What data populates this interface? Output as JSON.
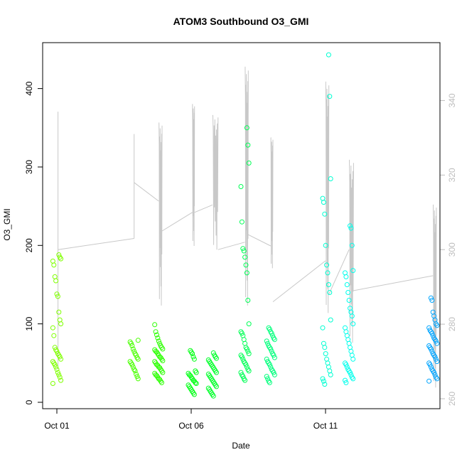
{
  "chart_data": {
    "type": "scatter",
    "title": "ATOM3 Southbound O3_GMI",
    "xlabel": "Date",
    "ylabel": "O3_GMI",
    "xlim": [
      "2016-10-01T00:00",
      "2016-10-16T00:00"
    ],
    "ylim": [
      0,
      450
    ],
    "y2lim": [
      260,
      350
    ],
    "x_ticks": [
      {
        "label": "Oct 01",
        "value": "2016-10-01T00:00"
      },
      {
        "label": "Oct 06",
        "value": "2016-10-06T00:00"
      },
      {
        "label": "Oct 11",
        "value": "2016-10-11T00:00"
      }
    ],
    "y_ticks": [
      0,
      100,
      200,
      300,
      400
    ],
    "y2_ticks": [
      260,
      280,
      300,
      320,
      340
    ],
    "grid": false,
    "series": [
      {
        "kind": "points",
        "axis": "left",
        "marker": "open-circle",
        "clusters": [
          {
            "x": "2016-10-01T00:00",
            "color": "#7FFF00",
            "values": [
              24,
              28,
              32,
              35,
              38,
              42,
              45,
              48,
              50,
              52,
              55,
              58,
              60,
              62,
              65,
              67,
              70,
              85,
              95,
              100,
              105,
              115,
              135,
              138,
              155,
              160,
              175,
              180,
              183,
              185,
              188
            ]
          },
          {
            "x": "2016-10-03T21:00",
            "color": "#49FF00",
            "values": [
              30,
              33,
              36,
              40,
              42,
              45,
              48,
              50,
              52,
              55,
              57,
              60,
              62,
              65,
              68,
              72,
              75,
              77,
              79
            ]
          },
          {
            "x": "2016-10-04T19:00",
            "color": "#2BFF00",
            "values": [
              25,
              27,
              29,
              30,
              32,
              34,
              35,
              37,
              38,
              40,
              42,
              44,
              45,
              47,
              48,
              50,
              52,
              53,
              55,
              57,
              58,
              60,
              62,
              64,
              65,
              67,
              68,
              70,
              72,
              75,
              78,
              82,
              86,
              90,
              99
            ]
          },
          {
            "x": "2016-10-06T01:00",
            "color": "#00FF14",
            "values": [
              10,
              12,
              14,
              16,
              18,
              20,
              22,
              24,
              25,
              27,
              28,
              30,
              32,
              34,
              35,
              37,
              38,
              40,
              55,
              58,
              62,
              64,
              66
            ]
          },
          {
            "x": "2016-10-06T19:00",
            "color": "#00FF2A",
            "values": [
              8,
              10,
              12,
              14,
              16,
              18,
              20,
              22,
              24,
              26,
              28,
              30,
              32,
              34,
              36,
              38,
              40,
              42,
              44,
              46,
              48,
              50,
              52,
              54,
              56,
              58,
              60,
              63
            ]
          },
          {
            "x": "2016-10-08T00:00",
            "color": "#00FF55",
            "values": [
              28,
              30,
              33,
              35,
              38,
              40,
              42,
              45,
              48,
              50,
              52,
              55,
              58,
              60,
              62,
              65,
              68,
              70,
              75,
              80,
              85,
              88,
              90,
              100,
              130,
              165,
              175,
              185,
              193,
              196,
              230,
              275,
              305,
              328,
              350
            ]
          },
          {
            "x": "2016-10-08T23:00",
            "color": "#00FF7C",
            "values": [
              25,
              27,
              30,
              33,
              35,
              38,
              40,
              42,
              45,
              48,
              50,
              52,
              55,
              57,
              60,
              62,
              65,
              68,
              70,
              72,
              75,
              78,
              80,
              82,
              85,
              88,
              90,
              93,
              95
            ]
          },
          {
            "x": "2016-10-11T01:00",
            "color": "#00FFD2",
            "values": [
              23,
              27,
              30,
              35,
              40,
              45,
              50,
              55,
              62,
              70,
              75,
              95,
              105,
              140,
              150,
              165,
              175,
              200,
              240,
              255,
              260,
              285,
              390,
              443
            ]
          },
          {
            "x": "2016-10-11T21:00",
            "color": "#00FFEC",
            "values": [
              25,
              28,
              30,
              32,
              35,
              38,
              40,
              42,
              45,
              48,
              50,
              55,
              60,
              65,
              70,
              75,
              80,
              85,
              90,
              95,
              100,
              110,
              115,
              120,
              130,
              140,
              150,
              160,
              165,
              168,
              200,
              222,
              225
            ]
          },
          {
            "x": "2016-10-15T00:00",
            "color": "#00A5FF",
            "values": [
              27,
              30,
              32,
              35,
              38,
              40,
              42,
              45,
              48,
              50,
              52,
              55,
              58,
              60,
              62,
              65,
              68,
              70,
              72,
              75,
              78,
              80,
              82,
              85,
              88,
              90,
              92,
              95,
              98,
              100,
              105,
              110,
              115,
              130,
              133
            ]
          }
        ]
      },
      {
        "kind": "line",
        "axis": "right",
        "color": "#C8C8C8",
        "segments": [
          {
            "x0": "2016-10-01T01:00",
            "x1": "2016-10-01T01:00",
            "min": 268,
            "max": 337
          },
          {
            "x0": "2016-10-01T01:00",
            "x1": "2016-10-03T21:00",
            "path": [
              300,
              303
            ]
          },
          {
            "x0": "2016-10-03T21:00",
            "x1": "2016-10-03T21:00",
            "min": 303,
            "max": 331
          },
          {
            "x0": "2016-10-03T21:00",
            "x1": "2016-10-04T19:00",
            "path": [
              318,
              313
            ]
          },
          {
            "x0": "2016-10-04T19:00",
            "x1": "2016-10-04T22:00",
            "min": 285,
            "max": 334
          },
          {
            "x0": "2016-10-04T22:00",
            "x1": "2016-10-06T01:00",
            "path": [
              305,
              310
            ]
          },
          {
            "x0": "2016-10-06T01:00",
            "x1": "2016-10-06T03:00",
            "min": 301,
            "max": 339
          },
          {
            "x0": "2016-10-06T03:00",
            "x1": "2016-10-06T19:00",
            "path": [
              310,
              312
            ]
          },
          {
            "x0": "2016-10-06T19:00",
            "x1": "2016-10-07T00:00",
            "min": 300,
            "max": 336
          },
          {
            "x0": "2016-10-07T00:00",
            "x1": "2016-10-08T00:00",
            "path": [
              300,
              302
            ]
          },
          {
            "x0": "2016-10-08T00:00",
            "x1": "2016-10-08T03:00",
            "min": 285,
            "max": 349
          },
          {
            "x0": "2016-10-08T03:00",
            "x1": "2016-10-08T23:00",
            "path": [
              304,
              301
            ]
          },
          {
            "x0": "2016-10-08T23:00",
            "x1": "2016-10-09T01:00",
            "min": 295,
            "max": 330
          },
          {
            "x0": "2016-10-09T01:00",
            "x1": "2016-10-11T00:00",
            "path": [
              286,
              297
            ]
          },
          {
            "x0": "2016-10-11T00:00",
            "x1": "2016-10-11T03:00",
            "min": 283,
            "max": 345
          },
          {
            "x0": "2016-10-11T03:00",
            "x1": "2016-10-11T21:00",
            "path": [
              288,
              300
            ]
          },
          {
            "x0": "2016-10-11T21:00",
            "x1": "2016-10-12T01:00",
            "min": 275,
            "max": 324
          },
          {
            "x0": "2016-10-12T01:00",
            "x1": "2016-10-15T00:00",
            "path": [
              289,
              293
            ]
          },
          {
            "x0": "2016-10-15T00:00",
            "x1": "2016-10-15T03:00",
            "min": 263,
            "max": 312
          }
        ]
      }
    ]
  }
}
